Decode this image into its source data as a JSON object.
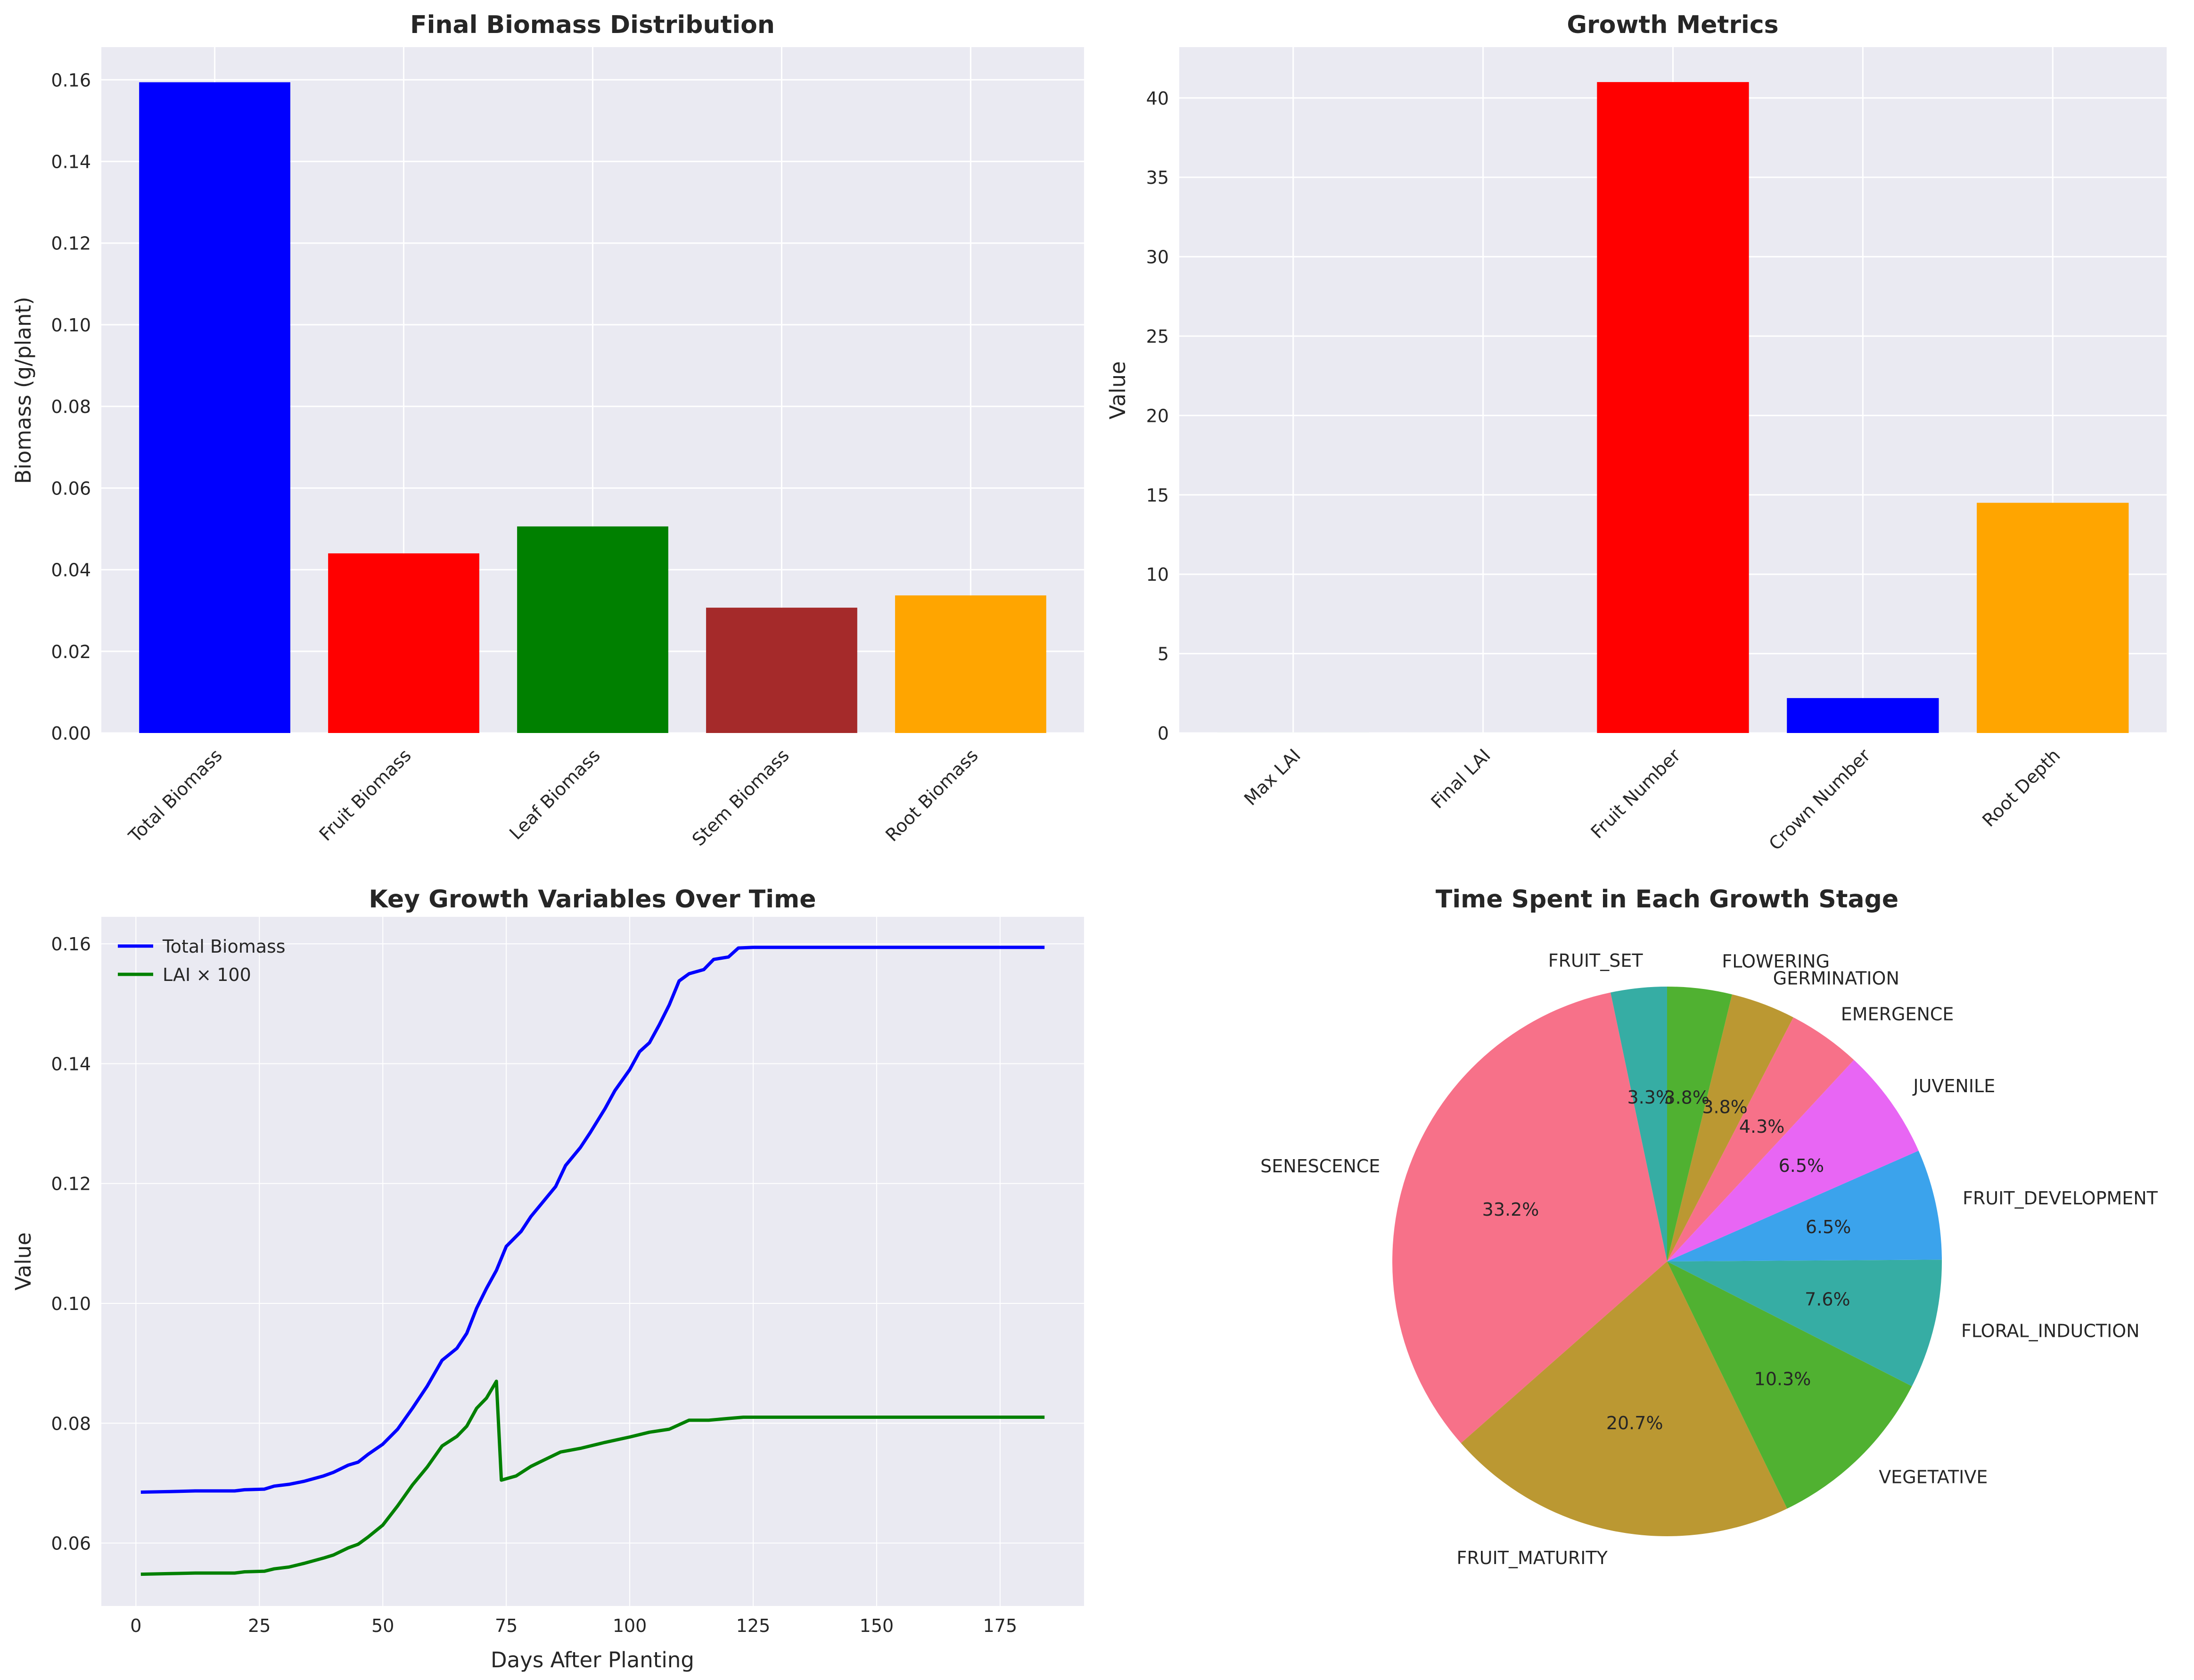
{
  "chart_data": [
    {
      "type": "bar",
      "title": "Final Biomass Distribution",
      "xlabel": "",
      "ylabel": "Biomass (g/plant)",
      "categories": [
        "Total Biomass",
        "Fruit Biomass",
        "Leaf Biomass",
        "Stem Biomass",
        "Root Biomass"
      ],
      "values": [
        0.1594,
        0.044,
        0.0506,
        0.0307,
        0.0337
      ],
      "colors": [
        "#0000ff",
        "#ff0000",
        "#008000",
        "#a52a2a",
        "#ffa500"
      ],
      "ylim": [
        0,
        0.168
      ],
      "yticks": [
        0,
        0.02,
        0.04,
        0.06,
        0.08,
        0.1,
        0.12,
        0.14,
        0.16
      ],
      "ytick_labels": [
        "0.00",
        "0.02",
        "0.04",
        "0.06",
        "0.08",
        "0.10",
        "0.12",
        "0.14",
        "0.16"
      ],
      "grid": true
    },
    {
      "type": "bar",
      "title": "Growth Metrics",
      "xlabel": "",
      "ylabel": "Value",
      "categories": [
        "Max LAI",
        "Final LAI",
        "Fruit Number",
        "Crown Number",
        "Root Depth"
      ],
      "values": [
        0.0009,
        0.0008,
        41,
        2.2,
        14.5
      ],
      "colors": [
        "#008000",
        "#90ee90",
        "#ff0000",
        "#0000ff",
        "#ffa500"
      ],
      "ylim": [
        0,
        43.2
      ],
      "yticks": [
        0,
        5,
        10,
        15,
        20,
        25,
        30,
        35,
        40
      ],
      "ytick_labels": [
        "0",
        "5",
        "10",
        "15",
        "20",
        "25",
        "30",
        "35",
        "40"
      ],
      "grid": true
    },
    {
      "type": "line",
      "title": "Key Growth Variables Over Time",
      "xlabel": "Days After Planting",
      "ylabel": "Value",
      "xlim": [
        -7,
        192
      ],
      "ylim": [
        0.0495,
        0.1645
      ],
      "xticks": [
        0,
        25,
        50,
        75,
        100,
        125,
        150,
        175
      ],
      "xtick_labels": [
        "0",
        "25",
        "50",
        "75",
        "100",
        "125",
        "150",
        "175"
      ],
      "yticks": [
        0.06,
        0.08,
        0.1,
        0.12,
        0.14,
        0.16
      ],
      "ytick_labels": [
        "0.06",
        "0.08",
        "0.10",
        "0.12",
        "0.14",
        "0.16"
      ],
      "legend": "top-left",
      "grid": true,
      "series": [
        {
          "name": "Total Biomass",
          "color": "#0000ff",
          "points": [
            [
              1,
              0.0685
            ],
            [
              7,
              0.0686
            ],
            [
              12,
              0.0687
            ],
            [
              20,
              0.0687
            ],
            [
              22,
              0.0689
            ],
            [
              26,
              0.069
            ],
            [
              28,
              0.0695
            ],
            [
              31,
              0.0698
            ],
            [
              34,
              0.0703
            ],
            [
              38,
              0.0712
            ],
            [
              40,
              0.0718
            ],
            [
              43,
              0.073
            ],
            [
              45,
              0.0735
            ],
            [
              47,
              0.0748
            ],
            [
              50,
              0.0765
            ],
            [
              53,
              0.079
            ],
            [
              56,
              0.0825
            ],
            [
              59,
              0.0862
            ],
            [
              62,
              0.0905
            ],
            [
              65,
              0.0925
            ],
            [
              67,
              0.095
            ],
            [
              69,
              0.0992
            ],
            [
              71,
              0.1025
            ],
            [
              73,
              0.1055
            ],
            [
              75,
              0.1095
            ],
            [
              78,
              0.112
            ],
            [
              80,
              0.1145
            ],
            [
              83,
              0.1175
            ],
            [
              85,
              0.1195
            ],
            [
              87,
              0.123
            ],
            [
              90,
              0.126
            ],
            [
              92,
              0.1285
            ],
            [
              95,
              0.1325
            ],
            [
              97,
              0.1355
            ],
            [
              100,
              0.139
            ],
            [
              102,
              0.142
            ],
            [
              104,
              0.1435
            ],
            [
              106,
              0.1465
            ],
            [
              108,
              0.1498
            ],
            [
              110,
              0.1538
            ],
            [
              112,
              0.155
            ],
            [
              115,
              0.1557
            ],
            [
              117,
              0.1574
            ],
            [
              120,
              0.1578
            ],
            [
              122,
              0.1593
            ],
            [
              125,
              0.1594
            ],
            [
              184,
              0.1594
            ]
          ]
        },
        {
          "name": "LAI × 100",
          "color": "#008000",
          "points": [
            [
              1,
              0.0548
            ],
            [
              7,
              0.0549
            ],
            [
              12,
              0.055
            ],
            [
              20,
              0.055
            ],
            [
              22,
              0.0552
            ],
            [
              26,
              0.0553
            ],
            [
              28,
              0.0557
            ],
            [
              31,
              0.056
            ],
            [
              34,
              0.0566
            ],
            [
              38,
              0.0575
            ],
            [
              40,
              0.058
            ],
            [
              43,
              0.0592
            ],
            [
              45,
              0.0598
            ],
            [
              47,
              0.061
            ],
            [
              50,
              0.063
            ],
            [
              53,
              0.0662
            ],
            [
              56,
              0.0697
            ],
            [
              59,
              0.0727
            ],
            [
              62,
              0.0762
            ],
            [
              65,
              0.0778
            ],
            [
              67,
              0.0795
            ],
            [
              69,
              0.0825
            ],
            [
              71,
              0.0842
            ],
            [
              73,
              0.087
            ],
            [
              74,
              0.0705
            ],
            [
              77,
              0.0712
            ],
            [
              80,
              0.0728
            ],
            [
              83,
              0.074
            ],
            [
              86,
              0.0752
            ],
            [
              90,
              0.0758
            ],
            [
              95,
              0.0768
            ],
            [
              100,
              0.0777
            ],
            [
              104,
              0.0785
            ],
            [
              108,
              0.079
            ],
            [
              112,
              0.0805
            ],
            [
              116,
              0.0805
            ],
            [
              120,
              0.0808
            ],
            [
              123,
              0.081
            ],
            [
              184,
              0.081
            ]
          ]
        }
      ]
    },
    {
      "type": "pie",
      "title": "Time Spent in Each Growth Stage",
      "start_angle": 90,
      "direction": "counterclockwise",
      "slices": [
        {
          "label": "FRUIT_SET",
          "value": 3.3,
          "pct_label": "3.3%",
          "color": "#36ada4"
        },
        {
          "label": "SENESCENCE",
          "value": 33.2,
          "pct_label": "33.2%",
          "color": "#f77189"
        },
        {
          "label": "FRUIT_MATURITY",
          "value": 20.7,
          "pct_label": "20.7%",
          "color": "#bb9832"
        },
        {
          "label": "VEGETATIVE",
          "value": 10.3,
          "pct_label": "10.3%",
          "color": "#50b131"
        },
        {
          "label": "FLORAL_INDUCTION",
          "value": 7.6,
          "pct_label": "7.6%",
          "color": "#36ada4"
        },
        {
          "label": "FRUIT_DEVELOPMENT",
          "value": 6.5,
          "pct_label": "6.5%",
          "color": "#3ba3ec"
        },
        {
          "label": "JUVENILE",
          "value": 6.5,
          "pct_label": "6.5%",
          "color": "#e866f4"
        },
        {
          "label": "EMERGENCE",
          "value": 4.3,
          "pct_label": "4.3%",
          "color": "#f77189"
        },
        {
          "label": "GERMINATION",
          "value": 3.8,
          "pct_label": "3.8%",
          "color": "#bb9832"
        },
        {
          "label": "FLOWERING",
          "value": 3.8,
          "pct_label": "3.8%",
          "color": "#50b131"
        }
      ]
    }
  ]
}
